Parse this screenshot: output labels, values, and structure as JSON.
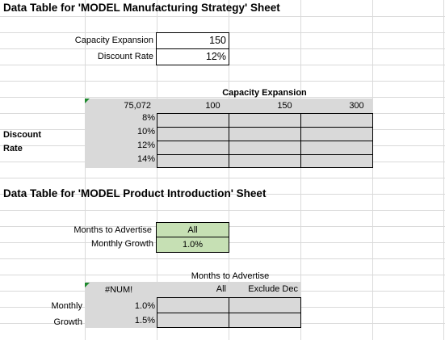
{
  "section1": {
    "title": "Data Table for 'MODEL Manufacturing Strategy' Sheet",
    "capacity_label": "Capacity Expansion",
    "capacity_value": "150",
    "discount_label": "Discount Rate",
    "discount_value": "12%",
    "table_header": "Capacity Expansion",
    "corner_value": "75,072",
    "columns": [
      "100",
      "150",
      "300"
    ],
    "row_label_1": "Discount",
    "row_label_2": "Rate",
    "rows": [
      "8%",
      "10%",
      "12%",
      "14%"
    ]
  },
  "section2": {
    "title": "Data Table for 'MODEL Product Introduction' Sheet",
    "months_label": "Months to Advertise",
    "months_value": "All",
    "growth_label": "Monthly Growth",
    "growth_value": "1.0%",
    "table_header": "Months to Advertise",
    "corner_value": "#NUM!",
    "columns": [
      "All",
      "Exclude Dec"
    ],
    "row_label_1": "Monthly",
    "row_label_2": "Growth",
    "rows": [
      "1.0%",
      "1.5%"
    ]
  },
  "colors": {
    "gray_fill": "#d9d9d9",
    "green_fill": "#c6e0b4",
    "gridline": "#dadada",
    "comment_marker": "#1e8a2e"
  }
}
